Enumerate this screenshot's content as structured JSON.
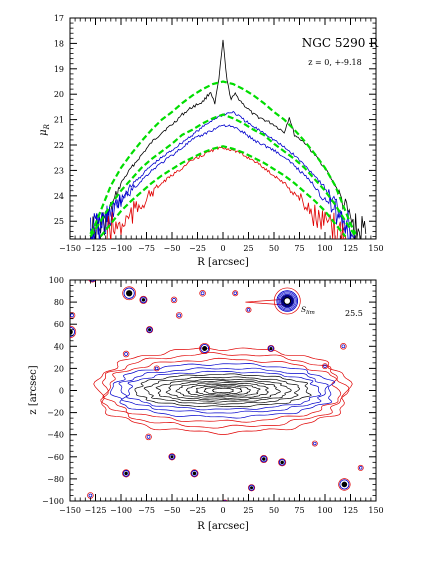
{
  "chart_data": [
    {
      "type": "line",
      "title": "NGC 5290 R",
      "annotation": "z = 0, +-9.18",
      "xlabel": "R [arcsec]",
      "ylabel": "μ_R",
      "xlim": [
        -150,
        150
      ],
      "ylim": [
        25.7,
        17
      ],
      "y_inverted": true,
      "x_ticks": [
        "-150",
        "-125",
        "-100",
        "-75",
        "-50",
        "-25",
        "0",
        "25",
        "50",
        "75",
        "100",
        "125",
        "150"
      ],
      "y_ticks": [
        "17",
        "18",
        "19",
        "20",
        "21",
        "22",
        "23",
        "24",
        "25"
      ],
      "colors": {
        "black": "#000000",
        "blue": "#0000cc",
        "red": "#e00000",
        "green": "#00dd00"
      },
      "series": [
        {
          "color": "black",
          "style": "solid",
          "x": [
            -130,
            -120,
            -110,
            -100,
            -90,
            -80,
            -70,
            -60,
            -50,
            -40,
            -30,
            -20,
            -12,
            -8,
            -4,
            0,
            4,
            8,
            12,
            20,
            30,
            40,
            50,
            60,
            65,
            70,
            80,
            90,
            100,
            110,
            120,
            125,
            130,
            140
          ],
          "y": [
            25.5,
            25.3,
            24.6,
            23.5,
            22.9,
            22.4,
            21.9,
            21.5,
            21.2,
            20.8,
            20.5,
            20.3,
            19.9,
            20.4,
            19.4,
            17.9,
            19.5,
            20.2,
            20.0,
            20.4,
            20.8,
            21.0,
            21.2,
            21.5,
            20.9,
            21.6,
            21.9,
            22.4,
            22.9,
            23.6,
            24.5,
            25.0,
            25.4,
            25.5
          ]
        },
        {
          "color": "blue",
          "style": "solid",
          "x": [
            -130,
            -120,
            -110,
            -100,
            -90,
            -80,
            -70,
            -60,
            -50,
            -40,
            -30,
            -20,
            -10,
            0,
            10,
            20,
            30,
            40,
            50,
            60,
            70,
            80,
            90,
            100,
            110,
            120,
            125,
            130
          ],
          "y": [
            25.4,
            25.1,
            24.8,
            24.2,
            23.6,
            23.2,
            22.8,
            22.5,
            22.2,
            21.9,
            21.6,
            21.3,
            21.0,
            20.8,
            20.7,
            21.0,
            21.3,
            21.5,
            21.8,
            22.1,
            22.4,
            22.8,
            23.2,
            23.7,
            24.3,
            24.9,
            25.2,
            25.4
          ]
        },
        {
          "color": "blue",
          "style": "solid",
          "x": [
            -130,
            -120,
            -110,
            -100,
            -90,
            -80,
            -70,
            -60,
            -50,
            -40,
            -30,
            -20,
            -10,
            0,
            10,
            20,
            30,
            40,
            50,
            60,
            70,
            80,
            90,
            100,
            110,
            120,
            125
          ],
          "y": [
            25.5,
            25.2,
            24.7,
            24.2,
            23.8,
            23.4,
            23.0,
            22.7,
            22.4,
            22.1,
            21.8,
            21.6,
            21.4,
            21.2,
            21.3,
            21.5,
            21.8,
            22.0,
            22.2,
            22.5,
            22.8,
            23.2,
            23.6,
            24.1,
            24.6,
            25.1,
            25.4
          ]
        },
        {
          "color": "red",
          "style": "solid",
          "x": [
            -115,
            -110,
            -100,
            -90,
            -80,
            -70,
            -60,
            -50,
            -40,
            -30,
            -20,
            -10,
            0,
            10,
            20,
            30,
            40,
            50,
            60,
            70,
            80,
            90,
            100,
            110,
            120
          ],
          "y": [
            25.6,
            25.3,
            25.2,
            24.8,
            24.3,
            23.9,
            23.5,
            23.2,
            22.9,
            22.6,
            22.4,
            22.2,
            22.1,
            22.2,
            22.4,
            22.6,
            22.9,
            23.2,
            23.5,
            23.9,
            24.3,
            24.8,
            25.2,
            25.4,
            25.6
          ]
        },
        {
          "color": "green",
          "style": "dashed",
          "x": [
            -130,
            -125,
            -120,
            -110,
            -100,
            -90,
            -80,
            -70,
            -60,
            -50,
            -40,
            -30,
            -20,
            -10,
            0,
            10,
            20,
            30,
            40,
            50,
            60,
            70,
            80,
            90,
            100,
            110,
            120,
            125,
            130
          ],
          "y": [
            25.5,
            25.1,
            24.6,
            23.6,
            22.9,
            22.35,
            21.85,
            21.4,
            21.0,
            20.7,
            20.35,
            20.05,
            19.8,
            19.6,
            19.5,
            19.6,
            19.8,
            20.05,
            20.35,
            20.7,
            21.0,
            21.4,
            21.85,
            22.35,
            22.9,
            23.6,
            24.6,
            25.1,
            25.5
          ]
        },
        {
          "color": "green",
          "style": "dashed",
          "x": [
            -130,
            -125,
            -120,
            -110,
            -100,
            -90,
            -80,
            -70,
            -60,
            -50,
            -40,
            -30,
            -20,
            -10,
            0,
            10,
            20,
            30,
            40,
            50,
            60,
            70,
            80,
            90,
            100,
            110,
            120,
            125,
            130
          ],
          "y": [
            25.6,
            25.3,
            25.0,
            24.35,
            23.8,
            23.35,
            22.9,
            22.55,
            22.25,
            21.95,
            21.6,
            21.4,
            21.15,
            20.95,
            20.8,
            20.95,
            21.15,
            21.4,
            21.6,
            21.95,
            22.25,
            22.55,
            22.9,
            23.35,
            23.8,
            24.35,
            25.0,
            25.3,
            25.6
          ]
        },
        {
          "color": "green",
          "style": "dashed",
          "x": [
            -120,
            -110,
            -100,
            -90,
            -80,
            -70,
            -60,
            -50,
            -40,
            -30,
            -20,
            -10,
            0,
            10,
            20,
            30,
            40,
            50,
            60,
            70,
            80,
            90,
            100,
            110,
            120
          ],
          "y": [
            25.6,
            25.1,
            24.6,
            24.2,
            23.85,
            23.5,
            23.2,
            22.95,
            22.7,
            22.5,
            22.3,
            22.15,
            22.05,
            22.15,
            22.3,
            22.5,
            22.7,
            22.95,
            23.2,
            23.5,
            23.85,
            24.2,
            24.6,
            25.1,
            25.6
          ]
        }
      ]
    },
    {
      "type": "contour",
      "xlabel": "R [arcsec]",
      "ylabel": "z [arcsec]",
      "xlim": [
        -150,
        150
      ],
      "ylim": [
        -100,
        100
      ],
      "x_ticks": [
        "-150",
        "-125",
        "-100",
        "-75",
        "-50",
        "-25",
        "0",
        "25",
        "50",
        "75",
        "100",
        "125",
        "150"
      ],
      "y_ticks": [
        "-100",
        "-80",
        "-60",
        "-40",
        "-20",
        "0",
        "20",
        "40",
        "60",
        "80",
        "100"
      ],
      "annotation_level": "25.5",
      "annotation_symbol": "S_lim",
      "colors": {
        "outer": "#e00000",
        "middle": "#0000cc",
        "inner": "#000000"
      },
      "galaxy": {
        "center": [
          0,
          0
        ],
        "contours": [
          {
            "color": "outer",
            "a": 122,
            "b": 38
          },
          {
            "color": "outer",
            "a": 118,
            "b": 33
          },
          {
            "color": "outer",
            "a": 113,
            "b": 28
          },
          {
            "color": "middle",
            "a": 107,
            "b": 24
          },
          {
            "color": "middle",
            "a": 100,
            "b": 20
          },
          {
            "color": "middle",
            "a": 93,
            "b": 17
          },
          {
            "color": "inner",
            "a": 84,
            "b": 14.5
          },
          {
            "color": "inner",
            "a": 74,
            "b": 12
          },
          {
            "color": "inner",
            "a": 64,
            "b": 10
          },
          {
            "color": "inner",
            "a": 54,
            "b": 8.5
          },
          {
            "color": "inner",
            "a": 44,
            "b": 7
          },
          {
            "color": "inner",
            "a": 35,
            "b": 5.5
          },
          {
            "color": "inner",
            "a": 26,
            "b": 4.3
          },
          {
            "color": "inner",
            "a": 18,
            "b": 3.2
          },
          {
            "color": "inner",
            "a": 10,
            "b": 2
          }
        ]
      },
      "stars": [
        {
          "x": 63,
          "y": 81,
          "r": 9
        },
        {
          "x": -92,
          "y": 88,
          "r": 4.5
        },
        {
          "x": -150,
          "y": 53,
          "r": 4
        },
        {
          "x": -128,
          "y": 102,
          "r": 3
        },
        {
          "x": -18,
          "y": 38,
          "r": 3.5
        },
        {
          "x": 119,
          "y": -85,
          "r": 4
        },
        {
          "x": -78,
          "y": 82,
          "r": 2.5
        },
        {
          "x": -72,
          "y": 55,
          "r": 2.2
        },
        {
          "x": -48,
          "y": 82,
          "r": 2
        },
        {
          "x": -43,
          "y": 68,
          "r": 2
        },
        {
          "x": -20,
          "y": 88,
          "r": 2
        },
        {
          "x": 12,
          "y": 88,
          "r": 1.8
        },
        {
          "x": -148,
          "y": 68,
          "r": 2
        },
        {
          "x": -95,
          "y": 33,
          "r": 2
        },
        {
          "x": -73,
          "y": -42,
          "r": 2
        },
        {
          "x": -50,
          "y": -60,
          "r": 2.2
        },
        {
          "x": -95,
          "y": -75,
          "r": 2.5
        },
        {
          "x": -28,
          "y": -75,
          "r": 2.5
        },
        {
          "x": 40,
          "y": -62,
          "r": 2.5
        },
        {
          "x": 58,
          "y": -65,
          "r": 2.5
        },
        {
          "x": 28,
          "y": -88,
          "r": 2.2
        },
        {
          "x": -130,
          "y": -95,
          "r": 2
        },
        {
          "x": 2,
          "y": -102,
          "r": 2.2
        },
        {
          "x": 90,
          "y": -48,
          "r": 1.8
        },
        {
          "x": 118,
          "y": 40,
          "r": 2
        },
        {
          "x": 135,
          "y": -70,
          "r": 1.8
        },
        {
          "x": 25,
          "y": 73,
          "r": 1.8
        },
        {
          "x": 47,
          "y": 38,
          "r": 2.2
        },
        {
          "x": -65,
          "y": 20,
          "r": 1.8
        },
        {
          "x": 100,
          "y": 22,
          "r": 1.8
        }
      ],
      "nearby_tail": {
        "from_x": 63,
        "to_x": 22,
        "z": 80
      }
    }
  ]
}
